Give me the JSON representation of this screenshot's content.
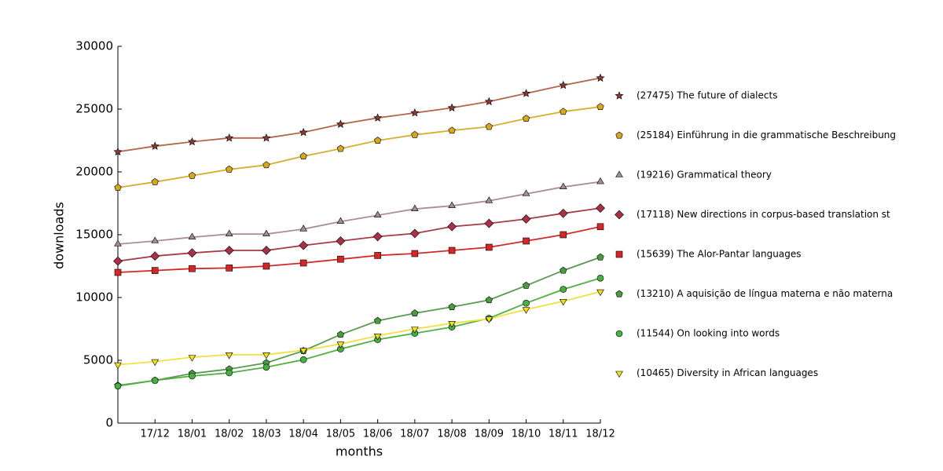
{
  "chart_data": {
    "type": "line",
    "x_label": "months",
    "y_label": "downloads",
    "categories": [
      null,
      "17/12",
      "18/01",
      "18/02",
      "18/03",
      "18/04",
      "18/05",
      "18/06",
      "18/07",
      "18/08",
      "18/09",
      "18/10",
      "18/11",
      "18/12"
    ],
    "ylim": [
      0,
      30000
    ],
    "yticks": [
      0,
      5000,
      10000,
      15000,
      20000,
      25000,
      30000
    ],
    "grid": false,
    "legend": "right",
    "series": [
      {
        "name": "(27475) The future of dialects",
        "color": "#b5654a",
        "marker_color": "#8b3a3a",
        "marker": "star",
        "values": [
          21600,
          22050,
          22400,
          22700,
          22700,
          23150,
          23800,
          24300,
          24700,
          25100,
          25600,
          26250,
          26900,
          27475
        ]
      },
      {
        "name": "(25184) Einführung in die grammatische Beschreibung",
        "color": "#d4b030",
        "marker_color": "#d4a820",
        "marker": "pentagon",
        "values": [
          18750,
          19200,
          19700,
          20200,
          20550,
          21250,
          21850,
          22500,
          22950,
          23300,
          23600,
          24250,
          24800,
          25184
        ]
      },
      {
        "name": "(19216) Grammatical theory",
        "color": "#a89090",
        "marker_color": "#a09090",
        "marker": "triangle-up",
        "values": [
          14250,
          14500,
          14800,
          15050,
          15050,
          15450,
          16050,
          16550,
          17050,
          17300,
          17700,
          18250,
          18800,
          19216
        ]
      },
      {
        "name": "(17118) New directions in corpus-based translation st",
        "color": "#a83a4a",
        "marker_color": "#a83048",
        "marker": "diamond",
        "values": [
          12900,
          13300,
          13550,
          13750,
          13750,
          14150,
          14500,
          14850,
          15100,
          15650,
          15900,
          16250,
          16700,
          17118
        ]
      },
      {
        "name": "(15639) The Alor-Pantar languages",
        "color": "#d62728",
        "marker_color": "#d62728",
        "marker": "square",
        "values": [
          12000,
          12150,
          12300,
          12350,
          12500,
          12750,
          13050,
          13350,
          13500,
          13750,
          14000,
          14500,
          15000,
          15639
        ]
      },
      {
        "name": "(13210) A aquisição de língua materna e não materna",
        "color": "#5a9a50",
        "marker_color": "#4a9a40",
        "marker": "pentagon",
        "values": [
          3000,
          3400,
          3950,
          4300,
          4800,
          5750,
          7050,
          8150,
          8750,
          9250,
          9800,
          10950,
          12150,
          13210
        ]
      },
      {
        "name": "(11544) On looking into words",
        "color": "#50b040",
        "marker_color": "#48b040",
        "marker": "circle",
        "values": [
          2950,
          3400,
          3750,
          4000,
          4450,
          5050,
          5900,
          6650,
          7150,
          7650,
          8350,
          9550,
          10650,
          11544
        ]
      },
      {
        "name": "(10465) Diversity in African languages",
        "color": "#f0e040",
        "marker_color": "#f0e020",
        "marker": "triangle-down",
        "values": [
          4650,
          4900,
          5250,
          5450,
          5450,
          5800,
          6300,
          6950,
          7500,
          7950,
          8300,
          9050,
          9700,
          10465
        ]
      }
    ]
  }
}
